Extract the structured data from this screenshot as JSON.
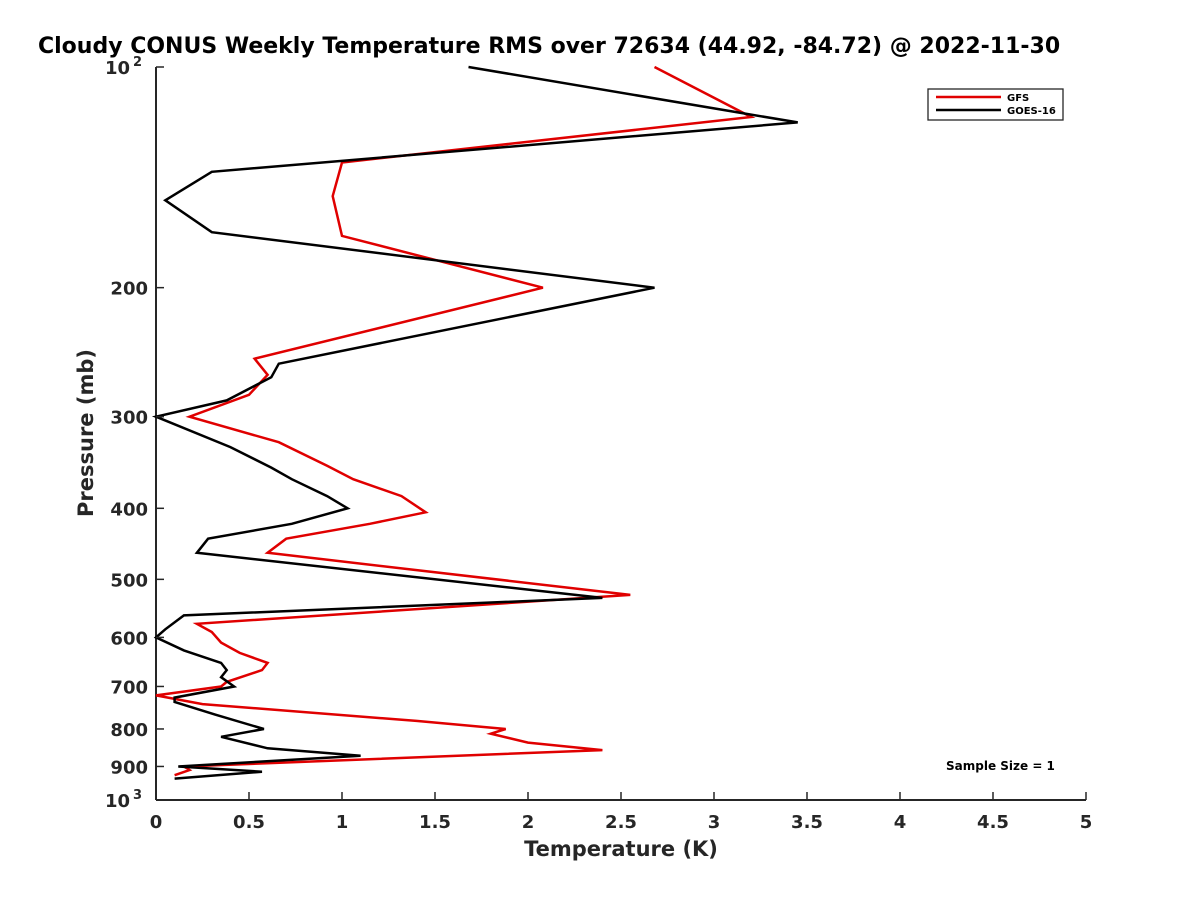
{
  "chart_data": {
    "type": "line",
    "title": "Cloudy CONUS Weekly Temperature RMS over 72634 (44.92, -84.72) @ 2022-11-30",
    "xlabel": "Temperature (K)",
    "ylabel": "Pressure (mb)",
    "xlim": [
      0,
      5
    ],
    "ylim": [
      100,
      1000
    ],
    "y_scale": "log",
    "y_reversed": true,
    "x_ticks": [
      "0",
      "0.5",
      "1",
      "1.5",
      "2",
      "2.5",
      "3",
      "3.5",
      "4",
      "4.5",
      "5"
    ],
    "y_ticks": [
      {
        "value": 100,
        "label": "10",
        "sup": "2"
      },
      {
        "value": 200,
        "label": "200",
        "sup": ""
      },
      {
        "value": 300,
        "label": "300",
        "sup": ""
      },
      {
        "value": 400,
        "label": "400",
        "sup": ""
      },
      {
        "value": 500,
        "label": "500",
        "sup": ""
      },
      {
        "value": 600,
        "label": "600",
        "sup": ""
      },
      {
        "value": 700,
        "label": "700",
        "sup": ""
      },
      {
        "value": 800,
        "label": "800",
        "sup": ""
      },
      {
        "value": 900,
        "label": "900",
        "sup": ""
      },
      {
        "value": 1000,
        "label": "10",
        "sup": "3"
      }
    ],
    "grid": false,
    "legend_position": "top-right",
    "annotation": "Sample Size = 1",
    "series": [
      {
        "name": "GFS",
        "color": "#e00000",
        "points": [
          [
            2.68,
            100
          ],
          [
            3.2,
            117
          ],
          [
            1.0,
            135
          ],
          [
            0.95,
            150
          ],
          [
            1.0,
            170
          ],
          [
            2.08,
            200
          ],
          [
            0.53,
            250
          ],
          [
            0.6,
            263
          ],
          [
            0.5,
            280
          ],
          [
            0.18,
            300
          ],
          [
            0.66,
            325
          ],
          [
            0.92,
            350
          ],
          [
            1.06,
            365
          ],
          [
            1.32,
            385
          ],
          [
            1.45,
            405
          ],
          [
            1.15,
            420
          ],
          [
            0.7,
            440
          ],
          [
            0.6,
            460
          ],
          [
            2.55,
            525
          ],
          [
            0.22,
            575
          ],
          [
            0.3,
            590
          ],
          [
            0.35,
            610
          ],
          [
            0.45,
            630
          ],
          [
            0.6,
            650
          ],
          [
            0.57,
            665
          ],
          [
            0.38,
            690
          ],
          [
            0.35,
            700
          ],
          [
            0.0,
            720
          ],
          [
            0.25,
            740
          ],
          [
            1.4,
            780
          ],
          [
            1.88,
            800
          ],
          [
            1.8,
            812
          ],
          [
            2.0,
            835
          ],
          [
            2.4,
            855
          ],
          [
            0.15,
            900
          ],
          [
            0.18,
            910
          ],
          [
            0.1,
            925
          ]
        ]
      },
      {
        "name": "GOES-16",
        "color": "#000000",
        "points": [
          [
            1.68,
            100
          ],
          [
            3.1,
            115
          ],
          [
            3.45,
            119
          ],
          [
            0.3,
            139
          ],
          [
            0.05,
            152
          ],
          [
            0.3,
            168
          ],
          [
            2.68,
            200
          ],
          [
            0.66,
            254
          ],
          [
            0.62,
            265
          ],
          [
            0.38,
            285
          ],
          [
            0.0,
            300
          ],
          [
            0.4,
            330
          ],
          [
            0.62,
            352
          ],
          [
            0.73,
            365
          ],
          [
            0.92,
            385
          ],
          [
            1.03,
            400
          ],
          [
            0.73,
            420
          ],
          [
            0.28,
            440
          ],
          [
            0.22,
            460
          ],
          [
            2.4,
            530
          ],
          [
            0.15,
            560
          ],
          [
            0.05,
            585
          ],
          [
            0.0,
            600
          ],
          [
            0.15,
            625
          ],
          [
            0.35,
            650
          ],
          [
            0.38,
            665
          ],
          [
            0.35,
            680
          ],
          [
            0.42,
            700
          ],
          [
            0.1,
            725
          ],
          [
            0.1,
            735
          ],
          [
            0.32,
            765
          ],
          [
            0.58,
            800
          ],
          [
            0.35,
            820
          ],
          [
            0.6,
            850
          ],
          [
            1.1,
            870
          ],
          [
            0.12,
            900
          ],
          [
            0.57,
            915
          ],
          [
            0.1,
            935
          ]
        ]
      }
    ]
  }
}
